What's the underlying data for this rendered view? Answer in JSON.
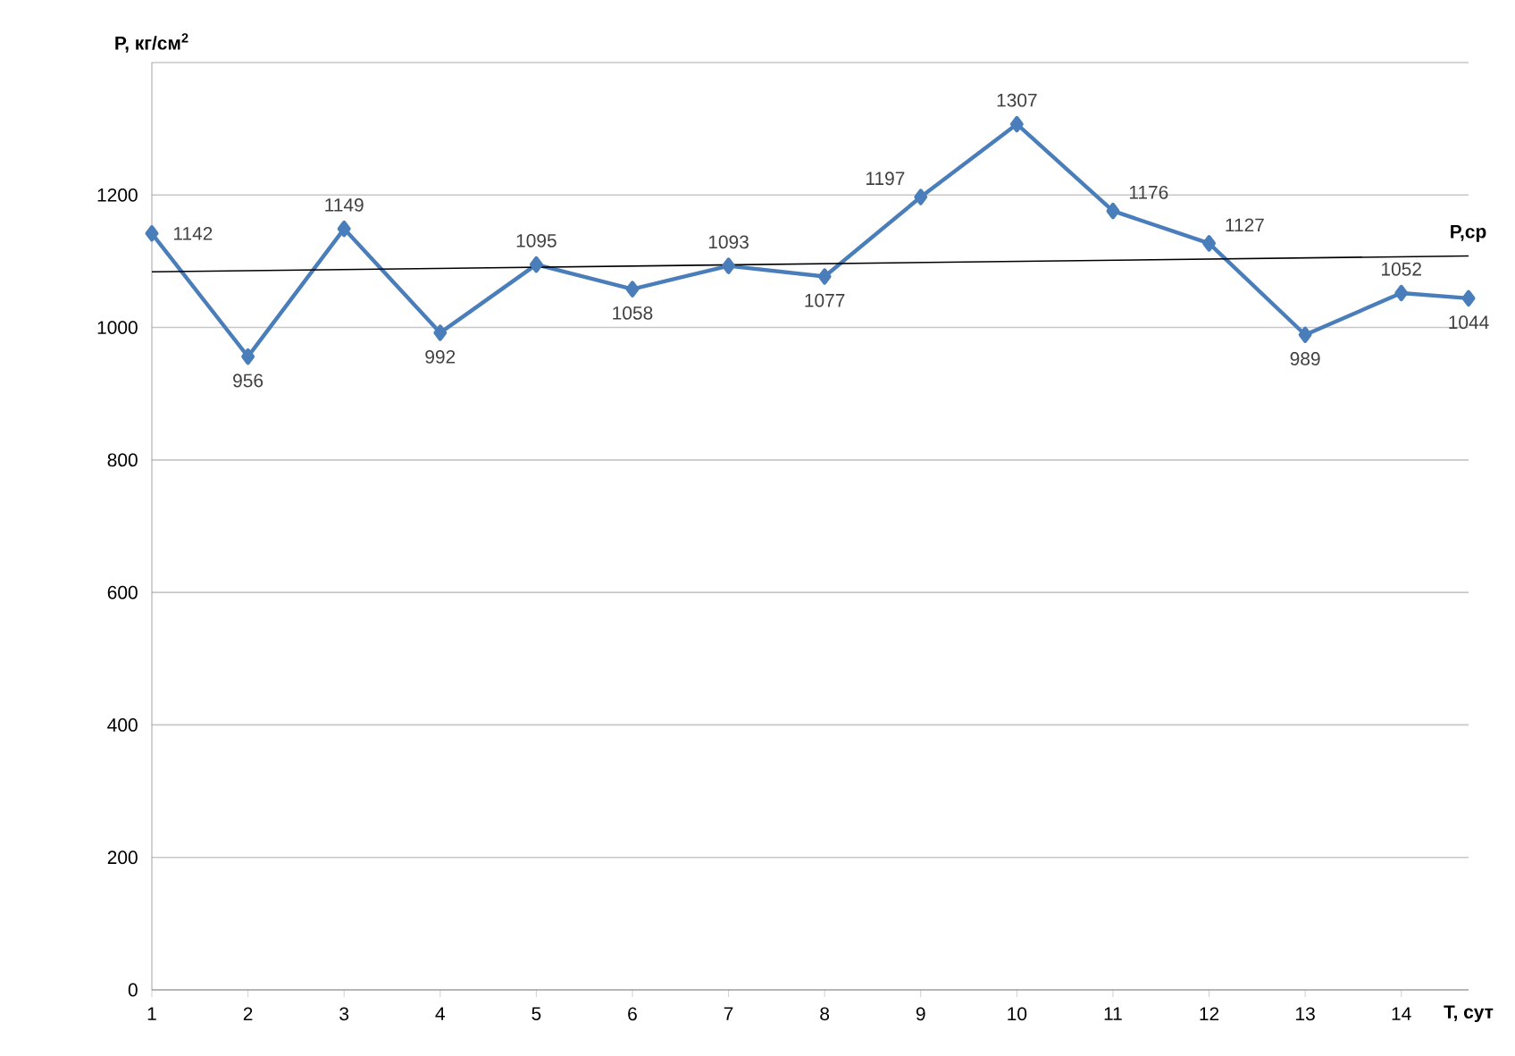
{
  "chart_data": {
    "type": "line",
    "xlabel": "T, сут",
    "ylabel": "P, кг/см$^{2}$",
    "x": [
      1,
      2,
      3,
      4,
      5,
      6,
      7,
      8,
      9,
      10,
      11,
      12,
      13,
      14,
      14.7
    ],
    "xlim": [
      1,
      14.7
    ],
    "xticks": [
      1,
      2,
      3,
      4,
      5,
      6,
      7,
      8,
      9,
      10,
      11,
      12,
      13,
      14
    ],
    "ylim": [
      0,
      1400
    ],
    "yticks": [
      0,
      200,
      400,
      600,
      800,
      1000,
      1200,
      {
        "value": 1400,
        "label": null
      }
    ],
    "grid": "y",
    "legend": false,
    "series": [
      {
        "color": "#4a7ebb",
        "marker": "diamond",
        "line_style": "solid",
        "values": [
          1142,
          956,
          1149,
          992,
          1095,
          1058,
          1093,
          1077,
          1197,
          1307,
          1176,
          1127,
          989,
          1052,
          1044
        ],
        "value_labels": [
          "1142",
          "956",
          "1149",
          "992",
          "1095",
          "1058",
          "1093",
          "1077",
          "1197",
          "1307",
          "1176",
          "1127",
          "989",
          "1052",
          "1044"
        ]
      },
      {
        "name": "P,ср",
        "type": "line",
        "color": "#000000",
        "marker": "none",
        "line_style": "solid",
        "x": [
          1,
          14.7
        ],
        "values": [
          1084,
          1108
        ]
      }
    ]
  }
}
